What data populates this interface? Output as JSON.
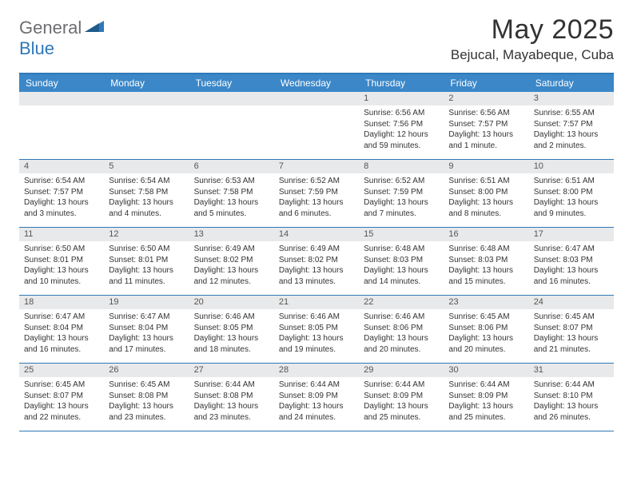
{
  "brand": {
    "part1": "General",
    "part2": "Blue"
  },
  "title": "May 2025",
  "location": "Bejucal, Mayabeque, Cuba",
  "colors": {
    "header_bg": "#3b87c8",
    "accent_border": "#2f78b8",
    "daynum_bg": "#e8e9ea",
    "text": "#333333",
    "brand_gray": "#6d6e71",
    "brand_blue": "#2f78b8"
  },
  "day_names": [
    "Sunday",
    "Monday",
    "Tuesday",
    "Wednesday",
    "Thursday",
    "Friday",
    "Saturday"
  ],
  "weeks": [
    [
      {
        "n": "",
        "sr": "",
        "ss": "",
        "dl": ""
      },
      {
        "n": "",
        "sr": "",
        "ss": "",
        "dl": ""
      },
      {
        "n": "",
        "sr": "",
        "ss": "",
        "dl": ""
      },
      {
        "n": "",
        "sr": "",
        "ss": "",
        "dl": ""
      },
      {
        "n": "1",
        "sr": "Sunrise: 6:56 AM",
        "ss": "Sunset: 7:56 PM",
        "dl": "Daylight: 12 hours and 59 minutes."
      },
      {
        "n": "2",
        "sr": "Sunrise: 6:56 AM",
        "ss": "Sunset: 7:57 PM",
        "dl": "Daylight: 13 hours and 1 minute."
      },
      {
        "n": "3",
        "sr": "Sunrise: 6:55 AM",
        "ss": "Sunset: 7:57 PM",
        "dl": "Daylight: 13 hours and 2 minutes."
      }
    ],
    [
      {
        "n": "4",
        "sr": "Sunrise: 6:54 AM",
        "ss": "Sunset: 7:57 PM",
        "dl": "Daylight: 13 hours and 3 minutes."
      },
      {
        "n": "5",
        "sr": "Sunrise: 6:54 AM",
        "ss": "Sunset: 7:58 PM",
        "dl": "Daylight: 13 hours and 4 minutes."
      },
      {
        "n": "6",
        "sr": "Sunrise: 6:53 AM",
        "ss": "Sunset: 7:58 PM",
        "dl": "Daylight: 13 hours and 5 minutes."
      },
      {
        "n": "7",
        "sr": "Sunrise: 6:52 AM",
        "ss": "Sunset: 7:59 PM",
        "dl": "Daylight: 13 hours and 6 minutes."
      },
      {
        "n": "8",
        "sr": "Sunrise: 6:52 AM",
        "ss": "Sunset: 7:59 PM",
        "dl": "Daylight: 13 hours and 7 minutes."
      },
      {
        "n": "9",
        "sr": "Sunrise: 6:51 AM",
        "ss": "Sunset: 8:00 PM",
        "dl": "Daylight: 13 hours and 8 minutes."
      },
      {
        "n": "10",
        "sr": "Sunrise: 6:51 AM",
        "ss": "Sunset: 8:00 PM",
        "dl": "Daylight: 13 hours and 9 minutes."
      }
    ],
    [
      {
        "n": "11",
        "sr": "Sunrise: 6:50 AM",
        "ss": "Sunset: 8:01 PM",
        "dl": "Daylight: 13 hours and 10 minutes."
      },
      {
        "n": "12",
        "sr": "Sunrise: 6:50 AM",
        "ss": "Sunset: 8:01 PM",
        "dl": "Daylight: 13 hours and 11 minutes."
      },
      {
        "n": "13",
        "sr": "Sunrise: 6:49 AM",
        "ss": "Sunset: 8:02 PM",
        "dl": "Daylight: 13 hours and 12 minutes."
      },
      {
        "n": "14",
        "sr": "Sunrise: 6:49 AM",
        "ss": "Sunset: 8:02 PM",
        "dl": "Daylight: 13 hours and 13 minutes."
      },
      {
        "n": "15",
        "sr": "Sunrise: 6:48 AM",
        "ss": "Sunset: 8:03 PM",
        "dl": "Daylight: 13 hours and 14 minutes."
      },
      {
        "n": "16",
        "sr": "Sunrise: 6:48 AM",
        "ss": "Sunset: 8:03 PM",
        "dl": "Daylight: 13 hours and 15 minutes."
      },
      {
        "n": "17",
        "sr": "Sunrise: 6:47 AM",
        "ss": "Sunset: 8:03 PM",
        "dl": "Daylight: 13 hours and 16 minutes."
      }
    ],
    [
      {
        "n": "18",
        "sr": "Sunrise: 6:47 AM",
        "ss": "Sunset: 8:04 PM",
        "dl": "Daylight: 13 hours and 16 minutes."
      },
      {
        "n": "19",
        "sr": "Sunrise: 6:47 AM",
        "ss": "Sunset: 8:04 PM",
        "dl": "Daylight: 13 hours and 17 minutes."
      },
      {
        "n": "20",
        "sr": "Sunrise: 6:46 AM",
        "ss": "Sunset: 8:05 PM",
        "dl": "Daylight: 13 hours and 18 minutes."
      },
      {
        "n": "21",
        "sr": "Sunrise: 6:46 AM",
        "ss": "Sunset: 8:05 PM",
        "dl": "Daylight: 13 hours and 19 minutes."
      },
      {
        "n": "22",
        "sr": "Sunrise: 6:46 AM",
        "ss": "Sunset: 8:06 PM",
        "dl": "Daylight: 13 hours and 20 minutes."
      },
      {
        "n": "23",
        "sr": "Sunrise: 6:45 AM",
        "ss": "Sunset: 8:06 PM",
        "dl": "Daylight: 13 hours and 20 minutes."
      },
      {
        "n": "24",
        "sr": "Sunrise: 6:45 AM",
        "ss": "Sunset: 8:07 PM",
        "dl": "Daylight: 13 hours and 21 minutes."
      }
    ],
    [
      {
        "n": "25",
        "sr": "Sunrise: 6:45 AM",
        "ss": "Sunset: 8:07 PM",
        "dl": "Daylight: 13 hours and 22 minutes."
      },
      {
        "n": "26",
        "sr": "Sunrise: 6:45 AM",
        "ss": "Sunset: 8:08 PM",
        "dl": "Daylight: 13 hours and 23 minutes."
      },
      {
        "n": "27",
        "sr": "Sunrise: 6:44 AM",
        "ss": "Sunset: 8:08 PM",
        "dl": "Daylight: 13 hours and 23 minutes."
      },
      {
        "n": "28",
        "sr": "Sunrise: 6:44 AM",
        "ss": "Sunset: 8:09 PM",
        "dl": "Daylight: 13 hours and 24 minutes."
      },
      {
        "n": "29",
        "sr": "Sunrise: 6:44 AM",
        "ss": "Sunset: 8:09 PM",
        "dl": "Daylight: 13 hours and 25 minutes."
      },
      {
        "n": "30",
        "sr": "Sunrise: 6:44 AM",
        "ss": "Sunset: 8:09 PM",
        "dl": "Daylight: 13 hours and 25 minutes."
      },
      {
        "n": "31",
        "sr": "Sunrise: 6:44 AM",
        "ss": "Sunset: 8:10 PM",
        "dl": "Daylight: 13 hours and 26 minutes."
      }
    ]
  ]
}
